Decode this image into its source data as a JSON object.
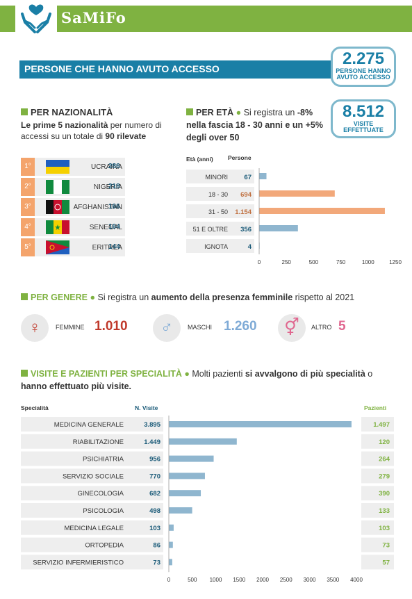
{
  "brand": "SaMiFo",
  "title": "PERSONE CHE HANNO AVUTO ACCESSO",
  "kpi": [
    {
      "value": "2.275",
      "label": "PERSONE HANNO AVUTO ACCESSO"
    },
    {
      "value": "8.512",
      "label": "VISITE EFFETTUATE"
    }
  ],
  "nationality": {
    "heading": "PER NAZIONALITÀ",
    "desc_pre": "Le prime 5 ",
    "desc_b1": "nazionalità",
    "desc_mid": " per numero di accessi su un totale di ",
    "desc_b2": "90 rilevate",
    "rows": [
      {
        "rank": "1°",
        "name": "UCRAINA",
        "value": "286"
      },
      {
        "rank": "2°",
        "name": "NIGERIA",
        "value": "218"
      },
      {
        "rank": "3°",
        "name": "AFGHANISTAN",
        "value": "166"
      },
      {
        "rank": "4°",
        "name": "SENEGAL",
        "value": "164"
      },
      {
        "rank": "5°",
        "name": "ERITREA",
        "value": "144"
      }
    ]
  },
  "age": {
    "heading": "PER ETÀ",
    "note_pre": "Si registra un",
    "note_b": "-8% nella fascia 18 - 30 anni e un +5% degli over 50",
    "col1": "Età (anni)",
    "col2": "Persone"
  },
  "gender": {
    "heading": "PER GENERE",
    "note_pre": "Si registra un ",
    "note_b": "aumento della presenza femminile",
    "note_post": " rispetto al 2021",
    "items": [
      {
        "label": "FEMMINE",
        "value": "1.010",
        "symbol": "♀",
        "color": "#c0392b"
      },
      {
        "label": "MASCHI",
        "value": "1.260",
        "symbol": "♂",
        "color": "#7eaad6"
      },
      {
        "label": "ALTRO",
        "value": "5",
        "symbol": "⚥",
        "color": "#e0668f"
      }
    ]
  },
  "specialty": {
    "heading": "VISITE E PAZIENTI PER SPECIALITÀ",
    "note_pre": "Molti pazienti ",
    "note_b1": "si avvalgono di più specialità",
    "note_mid": " o ",
    "note_b2": "hanno effettuato più visite.",
    "col1": "Specialità",
    "col2": "N. Visite",
    "col3": "Pazienti"
  },
  "chart_data": [
    {
      "type": "bar",
      "orientation": "horizontal",
      "categories": [
        "MINORI",
        "18 - 30",
        "31 - 50",
        "51 E OLTRE",
        "IGNOTA"
      ],
      "values": [
        67,
        694,
        1154,
        356,
        4
      ],
      "labels": [
        "67",
        "694",
        "1.154",
        "356",
        "4"
      ],
      "colors": [
        "#8fb6cf",
        "#f2a87a",
        "#f2a87a",
        "#8fb6cf",
        "#8fb6cf"
      ],
      "xlim": [
        0,
        1250
      ],
      "ticks": [
        0,
        250,
        500,
        750,
        1000,
        1250
      ]
    },
    {
      "type": "bar",
      "orientation": "horizontal",
      "categories": [
        "MEDICINA GENERALE",
        "RIABILITAZIONE",
        "PSICHIATRIA",
        "SERVIZIO SOCIALE",
        "GINECOLOGIA",
        "PSICOLOGIA",
        "MEDICINA LEGALE",
        "ORTOPEDIA",
        "SERVIZIO INFERMIERISTICO"
      ],
      "values": [
        3895,
        1449,
        956,
        770,
        682,
        498,
        103,
        86,
        73
      ],
      "labels": [
        "3.895",
        "1.449",
        "956",
        "770",
        "682",
        "498",
        "103",
        "86",
        "73"
      ],
      "patients": [
        "1.497",
        "120",
        "264",
        "279",
        "390",
        "133",
        "103",
        "73",
        "57"
      ],
      "color": "#8fb6cf",
      "xlim": [
        0,
        4000
      ],
      "ticks": [
        0,
        500,
        1000,
        1500,
        2000,
        2500,
        3000,
        3500,
        4000
      ]
    }
  ]
}
